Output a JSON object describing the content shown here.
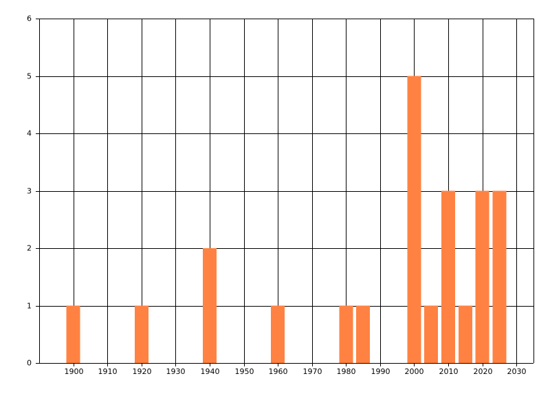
{
  "chart_data": {
    "type": "bar",
    "x": [
      1900,
      1920,
      1940,
      1960,
      1980,
      1985,
      2000,
      2005,
      2010,
      2015,
      2020,
      2025
    ],
    "values": [
      1,
      1,
      2,
      1,
      1,
      1,
      5,
      1,
      3,
      1,
      3,
      3
    ],
    "color": "#ff8242",
    "xlim": [
      1890,
      2035
    ],
    "xticks": [
      1900,
      1910,
      1920,
      1930,
      1940,
      1950,
      1960,
      1970,
      1980,
      1990,
      2000,
      2010,
      2020,
      2030
    ],
    "ylim": [
      0,
      6
    ],
    "yticks": [
      0,
      1,
      2,
      3,
      4,
      5,
      6
    ],
    "grid": true
  }
}
